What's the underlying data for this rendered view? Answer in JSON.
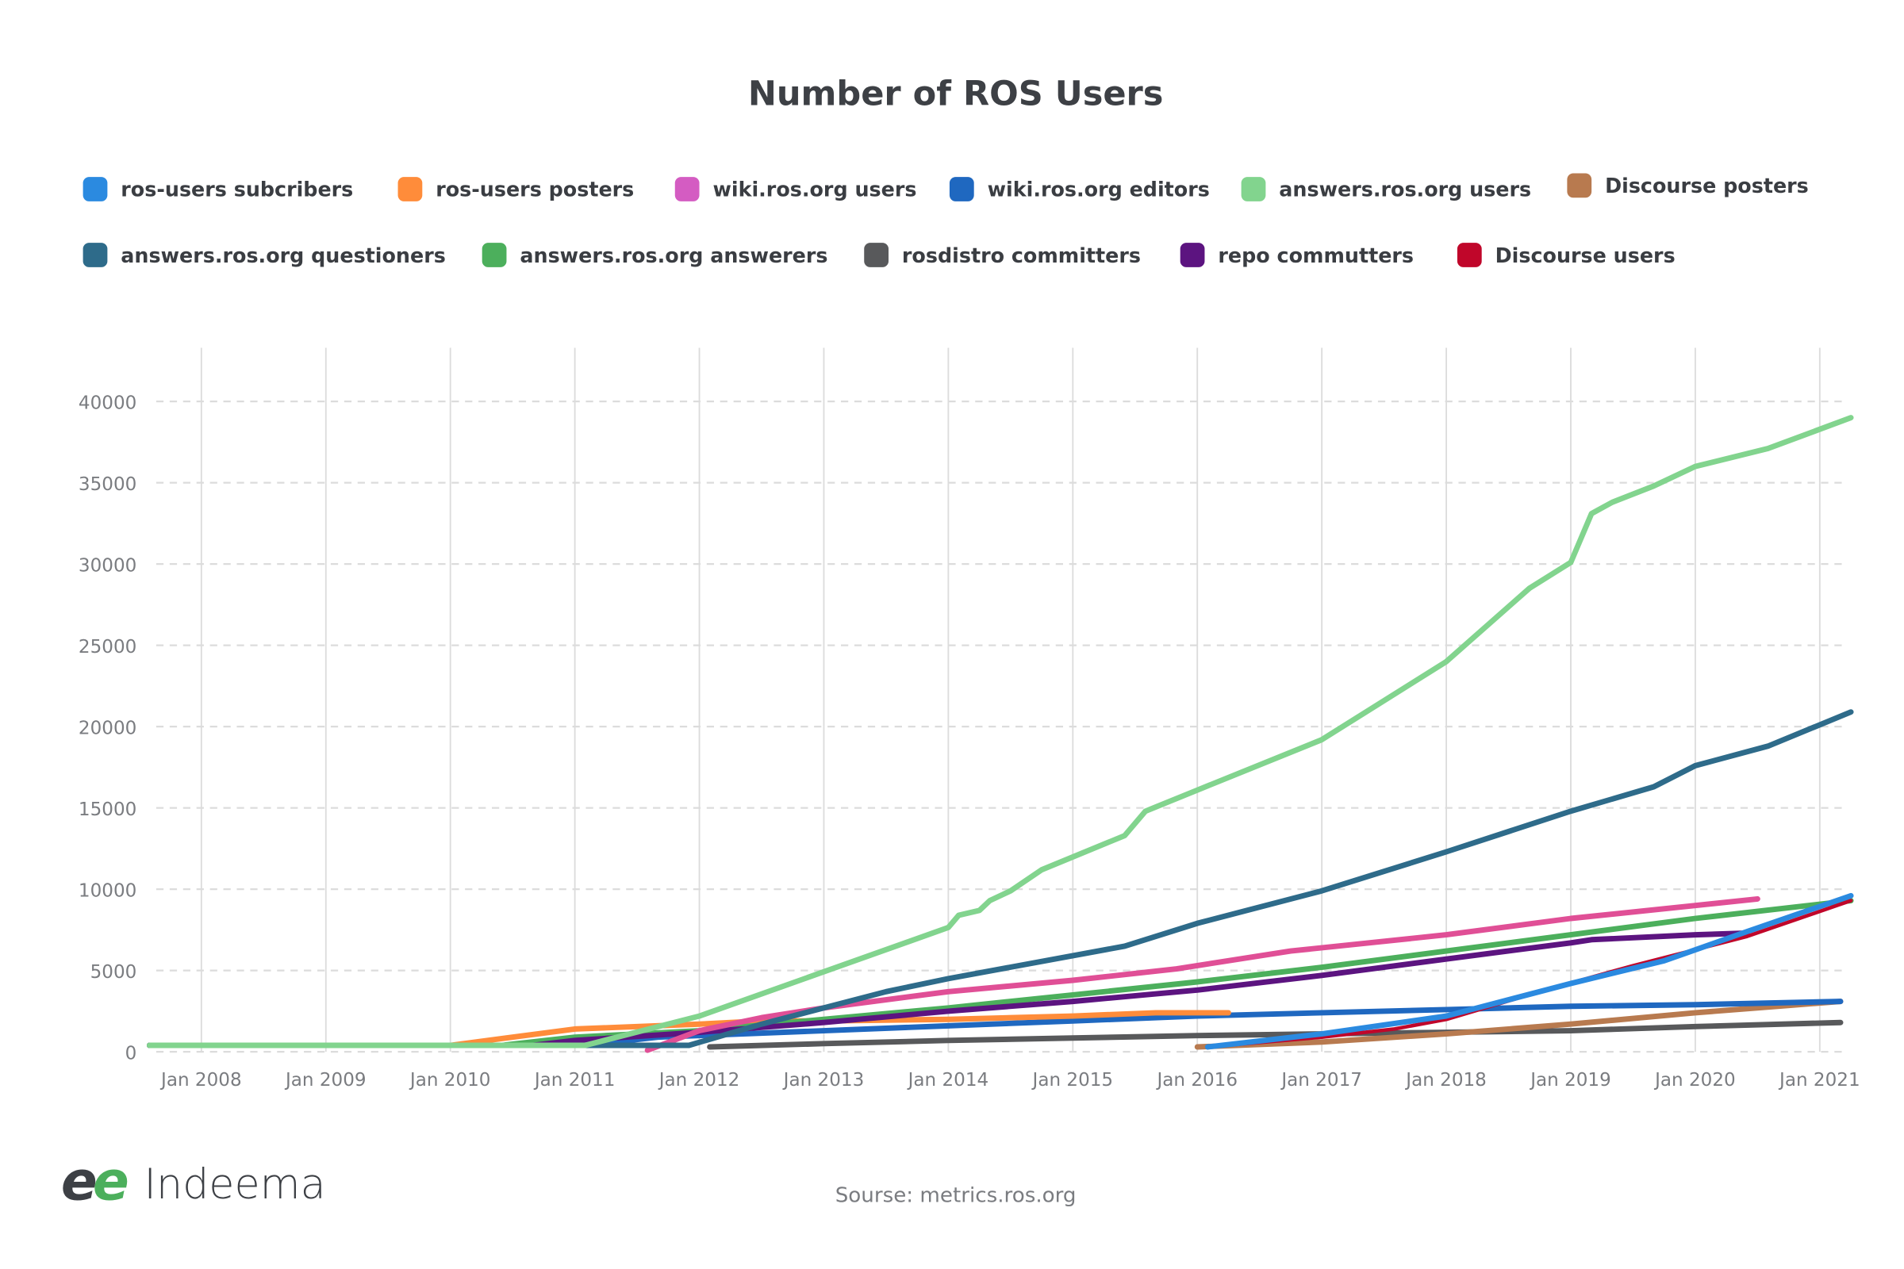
{
  "chart_data": {
    "type": "line",
    "title": "Number of ROS Users",
    "source": "Sourse: metrics.ros.org",
    "logo_text": "Indeema",
    "xlabel": "",
    "ylabel": "",
    "ylim": [
      0,
      40000
    ],
    "y_ticks": [
      "0",
      "5000",
      "10000",
      "15000",
      "20000",
      "25000",
      "30000",
      "35000",
      "40000"
    ],
    "x_ticks": [
      "Jan 2008",
      "Jan 2009",
      "Jan 2010",
      "Jan 2011",
      "Jan 2012",
      "Jan 2013",
      "Jan 2014",
      "Jan 2015",
      "Jan 2016",
      "Jan 2017",
      "Jan 2018",
      "Jan 2019",
      "Jan 2020",
      "Jan 2021"
    ],
    "grid": true,
    "legend_placement": "top",
    "series": [
      {
        "name": "ros-users subcribers",
        "color": "#2b8ae0",
        "points": [
          [
            "2016-02",
            300
          ],
          [
            "2017-01",
            1100
          ],
          [
            "2018-01",
            2200
          ],
          [
            "2019-01",
            4200
          ],
          [
            "2019-10",
            5600
          ],
          [
            "2020-06",
            7400
          ],
          [
            "2021-04",
            9600
          ]
        ]
      },
      {
        "name": "ros-users posters",
        "color": "#ff8c3a",
        "points": [
          [
            "2007-08",
            400
          ],
          [
            "2010-01",
            400
          ],
          [
            "2011-01",
            1400
          ],
          [
            "2012-01",
            1700
          ],
          [
            "2012-07",
            1900
          ],
          [
            "2013-01",
            1900
          ],
          [
            "2014-01",
            2000
          ],
          [
            "2015-01",
            2200
          ],
          [
            "2015-09",
            2400
          ],
          [
            "2016-04",
            2400
          ]
        ]
      },
      {
        "name": "wiki.ros.org users",
        "color": "#e04f96",
        "legend_color": "#d45cc2",
        "points": [
          [
            "2011-08",
            100
          ],
          [
            "2012-01",
            1300
          ],
          [
            "2012-07",
            2100
          ],
          [
            "2013-01",
            2700
          ],
          [
            "2014-01",
            3700
          ],
          [
            "2015-01",
            4400
          ],
          [
            "2015-11",
            5100
          ],
          [
            "2016-10",
            6200
          ],
          [
            "2018-01",
            7200
          ],
          [
            "2019-01",
            8200
          ],
          [
            "2020-01",
            9000
          ],
          [
            "2020-07",
            9400
          ]
        ]
      },
      {
        "name": "wiki.ros.org editors",
        "color": "#1f68c0",
        "points": [
          [
            "2011-02",
            400
          ],
          [
            "2011-09",
            900
          ],
          [
            "2012-01",
            1000
          ],
          [
            "2013-01",
            1300
          ],
          [
            "2014-01",
            1600
          ],
          [
            "2015-01",
            1900
          ],
          [
            "2016-01",
            2200
          ],
          [
            "2017-01",
            2400
          ],
          [
            "2018-01",
            2600
          ],
          [
            "2019-01",
            2800
          ],
          [
            "2020-01",
            2900
          ],
          [
            "2021-03",
            3100
          ]
        ]
      },
      {
        "name": "answers.ros.org users",
        "color": "#82d48e",
        "points": [
          [
            "2007-08",
            400
          ],
          [
            "2011-02",
            400
          ],
          [
            "2012-01",
            2200
          ],
          [
            "2014-01",
            7650
          ],
          [
            "2014-02",
            8400
          ],
          [
            "2014-04",
            8700
          ],
          [
            "2014-05",
            9300
          ],
          [
            "2014-07",
            9900
          ],
          [
            "2014-10",
            11200
          ],
          [
            "2015-06",
            13300
          ],
          [
            "2015-08",
            14800
          ],
          [
            "2016-01",
            16100
          ],
          [
            "2017-01",
            19200
          ],
          [
            "2018-01",
            24000
          ],
          [
            "2018-09",
            28500
          ],
          [
            "2019-01",
            30100
          ],
          [
            "2019-03",
            33100
          ],
          [
            "2019-05",
            33800
          ],
          [
            "2019-09",
            34800
          ],
          [
            "2020-01",
            36000
          ],
          [
            "2020-08",
            37100
          ],
          [
            "2021-04",
            39000
          ]
        ]
      },
      {
        "name": "Discourse posters",
        "color": "#b87a4f",
        "points": [
          [
            "2016-01",
            300
          ],
          [
            "2017-01",
            600
          ],
          [
            "2018-01",
            1100
          ],
          [
            "2019-01",
            1700
          ],
          [
            "2020-01",
            2400
          ],
          [
            "2021-03",
            3100
          ]
        ]
      },
      {
        "name": "answers.ros.org questioners",
        "color": "#2e6b8a",
        "points": [
          [
            "2007-08",
            400
          ],
          [
            "2011-02",
            400
          ],
          [
            "2011-12",
            400
          ],
          [
            "2012-07",
            1700
          ],
          [
            "2013-07",
            3700
          ],
          [
            "2014-01",
            4500
          ],
          [
            "2015-06",
            6500
          ],
          [
            "2016-01",
            7900
          ],
          [
            "2017-01",
            9900
          ],
          [
            "2018-01",
            12300
          ],
          [
            "2019-01",
            14800
          ],
          [
            "2019-09",
            16300
          ],
          [
            "2020-01",
            17600
          ],
          [
            "2020-08",
            18800
          ],
          [
            "2021-04",
            20900
          ]
        ]
      },
      {
        "name": "answers.ros.org answerers",
        "color": "#4caf5c",
        "points": [
          [
            "2007-08",
            400
          ],
          [
            "2010-06",
            400
          ],
          [
            "2011-01",
            900
          ],
          [
            "2012-01",
            1300
          ],
          [
            "2013-01",
            2000
          ],
          [
            "2014-01",
            2700
          ],
          [
            "2015-01",
            3500
          ],
          [
            "2016-01",
            4300
          ],
          [
            "2017-01",
            5200
          ],
          [
            "2018-01",
            6200
          ],
          [
            "2019-01",
            7200
          ],
          [
            "2020-01",
            8200
          ],
          [
            "2021-04",
            9300
          ]
        ]
      },
      {
        "name": "rosdistro committers",
        "color": "#58595b",
        "points": [
          [
            "2012-02",
            300
          ],
          [
            "2013-01",
            500
          ],
          [
            "2014-01",
            700
          ],
          [
            "2015-01",
            850
          ],
          [
            "2016-01",
            1000
          ],
          [
            "2017-01",
            1100
          ],
          [
            "2018-01",
            1200
          ],
          [
            "2019-01",
            1300
          ],
          [
            "2020-01",
            1550
          ],
          [
            "2021-03",
            1800
          ]
        ]
      },
      {
        "name": "repo commutters",
        "color": "#5c1480",
        "points": [
          [
            "2007-08",
            400
          ],
          [
            "2010-09",
            400
          ],
          [
            "2011-01",
            700
          ],
          [
            "2012-01",
            1200
          ],
          [
            "2013-01",
            1800
          ],
          [
            "2014-01",
            2500
          ],
          [
            "2015-01",
            3100
          ],
          [
            "2016-01",
            3800
          ],
          [
            "2017-01",
            4700
          ],
          [
            "2018-01",
            5700
          ],
          [
            "2019-01",
            6700
          ],
          [
            "2019-03",
            6900
          ],
          [
            "2020-01",
            7200
          ],
          [
            "2020-06",
            7300
          ]
        ]
      },
      {
        "name": "Discourse users",
        "color": "#c0062a",
        "points": [
          [
            "2016-02",
            300
          ],
          [
            "2017-01",
            900
          ],
          [
            "2017-08",
            1400
          ],
          [
            "2018-01",
            2000
          ],
          [
            "2018-10",
            3700
          ],
          [
            "2019-07",
            5300
          ],
          [
            "2020-06",
            7100
          ],
          [
            "2021-04",
            9300
          ]
        ]
      }
    ]
  }
}
